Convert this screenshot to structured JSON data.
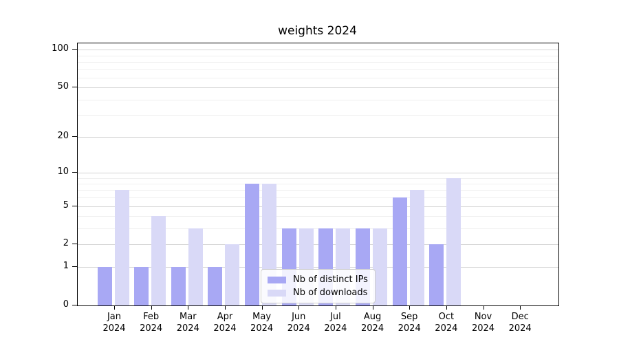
{
  "chart_data": {
    "type": "bar",
    "title": "weights 2024",
    "categories": [
      "Jan 2024",
      "Feb 2024",
      "Mar 2024",
      "Apr 2024",
      "May 2024",
      "Jun 2024",
      "Jul 2024",
      "Aug 2024",
      "Sep 2024",
      "Oct 2024",
      "Nov 2024",
      "Dec 2024"
    ],
    "series": [
      {
        "name": "Nb of distinct IPs",
        "color": "#a8a8f4",
        "values": [
          1,
          1,
          1,
          1,
          8,
          3,
          3,
          3,
          6,
          2,
          0,
          0
        ]
      },
      {
        "name": "Nb of downloads",
        "color": "#d9d9f7",
        "values": [
          7,
          4,
          3,
          2,
          8,
          3,
          3,
          3,
          7,
          9,
          0,
          0
        ]
      }
    ],
    "yscale": "log1p",
    "yticks": [
      0,
      1,
      2,
      5,
      10,
      20,
      50,
      100
    ],
    "yticks_minor": [
      3,
      4,
      6,
      7,
      8,
      9,
      30,
      40,
      60,
      70,
      80,
      90
    ],
    "ylim": [
      0,
      115
    ],
    "xlabel": "",
    "ylabel": "",
    "grid": true,
    "legend_position": "lower center",
    "colors": {
      "grid_major": "#d4d4d4",
      "grid_minor": "#efefef",
      "axis": "#000000",
      "legend_border": "#cccccc"
    }
  }
}
